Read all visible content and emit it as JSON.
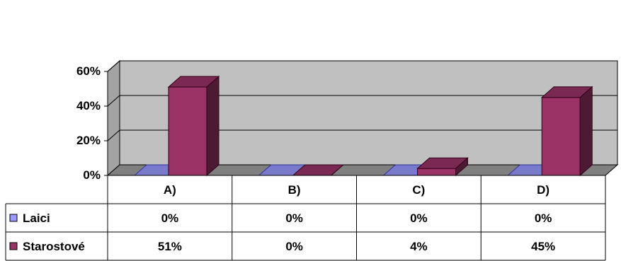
{
  "chart_data": {
    "type": "bar",
    "variant": "3d-column-with-data-table",
    "categories": [
      "A)",
      "B)",
      "C)",
      "D)"
    ],
    "series": [
      {
        "name": "Laici",
        "values": [
          0,
          0,
          0,
          0
        ],
        "labels": [
          "0%",
          "0%",
          "0%",
          "0%"
        ],
        "color": "#9999ff"
      },
      {
        "name": "Starostové",
        "values": [
          51,
          0,
          4,
          45
        ],
        "labels": [
          "51%",
          "0%",
          "4%",
          "45%"
        ],
        "color": "#993366"
      }
    ],
    "y_ticks": [
      "0%",
      "20%",
      "40%",
      "60%"
    ],
    "y_tick_values": [
      0,
      20,
      40,
      60
    ],
    "ylim": [
      0,
      60
    ],
    "grid": true,
    "plot_background": "#c0c0c0",
    "legend": "data-table"
  }
}
